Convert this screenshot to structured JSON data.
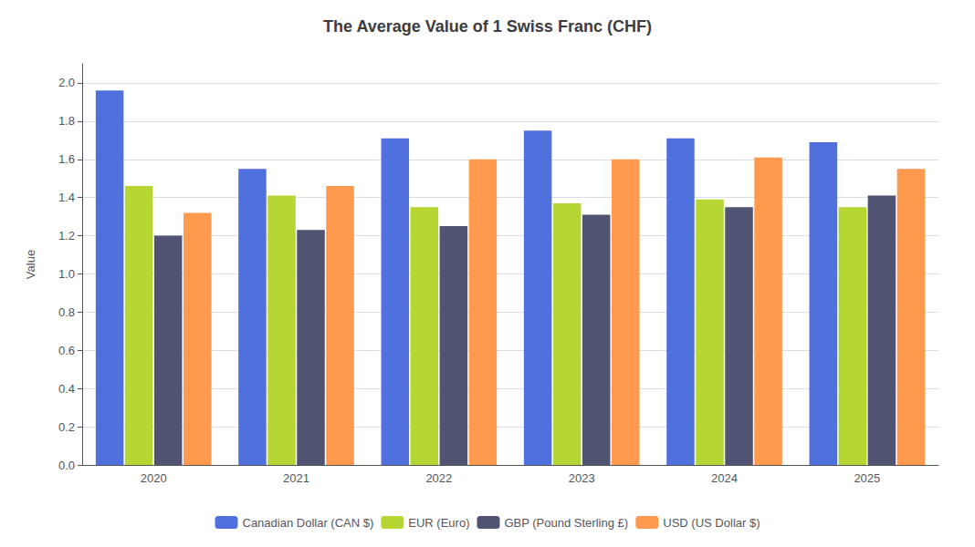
{
  "chart_data": {
    "type": "bar",
    "title": "The Average Value of 1 Swiss Franc (CHF)",
    "ylabel": "Value",
    "categories": [
      "2020",
      "2021",
      "2022",
      "2023",
      "2024",
      "2025"
    ],
    "series": [
      {
        "name": "Canadian Dollar (CAN $)",
        "values": [
          1.96,
          1.55,
          1.71,
          1.75,
          1.71,
          1.69
        ]
      },
      {
        "name": "EUR (Euro)",
        "values": [
          1.46,
          1.41,
          1.35,
          1.37,
          1.39,
          1.35
        ]
      },
      {
        "name": "GBP (Pound Sterling £)",
        "values": [
          1.2,
          1.23,
          1.25,
          1.31,
          1.35,
          1.41
        ]
      },
      {
        "name": "USD (US Dollar $)",
        "values": [
          1.32,
          1.46,
          1.6,
          1.6,
          1.61,
          1.55
        ]
      }
    ],
    "ylim": [
      0,
      2.1
    ],
    "yticks": [
      {
        "value": 0,
        "label": "0.0"
      },
      0.2,
      0.4,
      0.6,
      0.8,
      {
        "value": 1.0,
        "label": "1.0"
      },
      1.2,
      1.4,
      1.6,
      1.8,
      {
        "value": 2.0,
        "label": "2.0"
      }
    ],
    "grid": true,
    "legend": "bottom"
  }
}
